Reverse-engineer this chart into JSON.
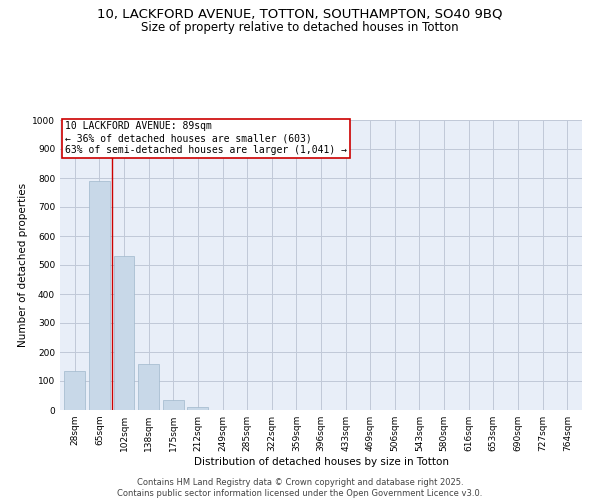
{
  "title_line1": "10, LACKFORD AVENUE, TOTTON, SOUTHAMPTON, SO40 9BQ",
  "title_line2": "Size of property relative to detached houses in Totton",
  "xlabel": "Distribution of detached houses by size in Totton",
  "ylabel": "Number of detached properties",
  "categories": [
    "28sqm",
    "65sqm",
    "102sqm",
    "138sqm",
    "175sqm",
    "212sqm",
    "249sqm",
    "285sqm",
    "322sqm",
    "359sqm",
    "396sqm",
    "433sqm",
    "469sqm",
    "506sqm",
    "543sqm",
    "580sqm",
    "616sqm",
    "653sqm",
    "690sqm",
    "727sqm",
    "764sqm"
  ],
  "values": [
    135,
    790,
    530,
    160,
    35,
    10,
    0,
    0,
    0,
    0,
    0,
    0,
    0,
    0,
    0,
    0,
    0,
    0,
    0,
    0,
    0
  ],
  "bar_color": "#c8d8e8",
  "bar_edge_color": "#a0b8cc",
  "vline_color": "#cc0000",
  "vline_pos": 1.5,
  "annotation_text": "10 LACKFORD AVENUE: 89sqm\n← 36% of detached houses are smaller (603)\n63% of semi-detached houses are larger (1,041) →",
  "annotation_box_color": "#ffffff",
  "annotation_box_edge": "#cc0000",
  "ylim": [
    0,
    1000
  ],
  "yticks": [
    0,
    100,
    200,
    300,
    400,
    500,
    600,
    700,
    800,
    900,
    1000
  ],
  "grid_color": "#c0c8d8",
  "bg_color": "#e8eef8",
  "footer_line1": "Contains HM Land Registry data © Crown copyright and database right 2025.",
  "footer_line2": "Contains public sector information licensed under the Open Government Licence v3.0.",
  "title_fontsize": 9.5,
  "subtitle_fontsize": 8.5,
  "axis_label_fontsize": 7.5,
  "tick_fontsize": 6.5,
  "annotation_fontsize": 7,
  "footer_fontsize": 6
}
